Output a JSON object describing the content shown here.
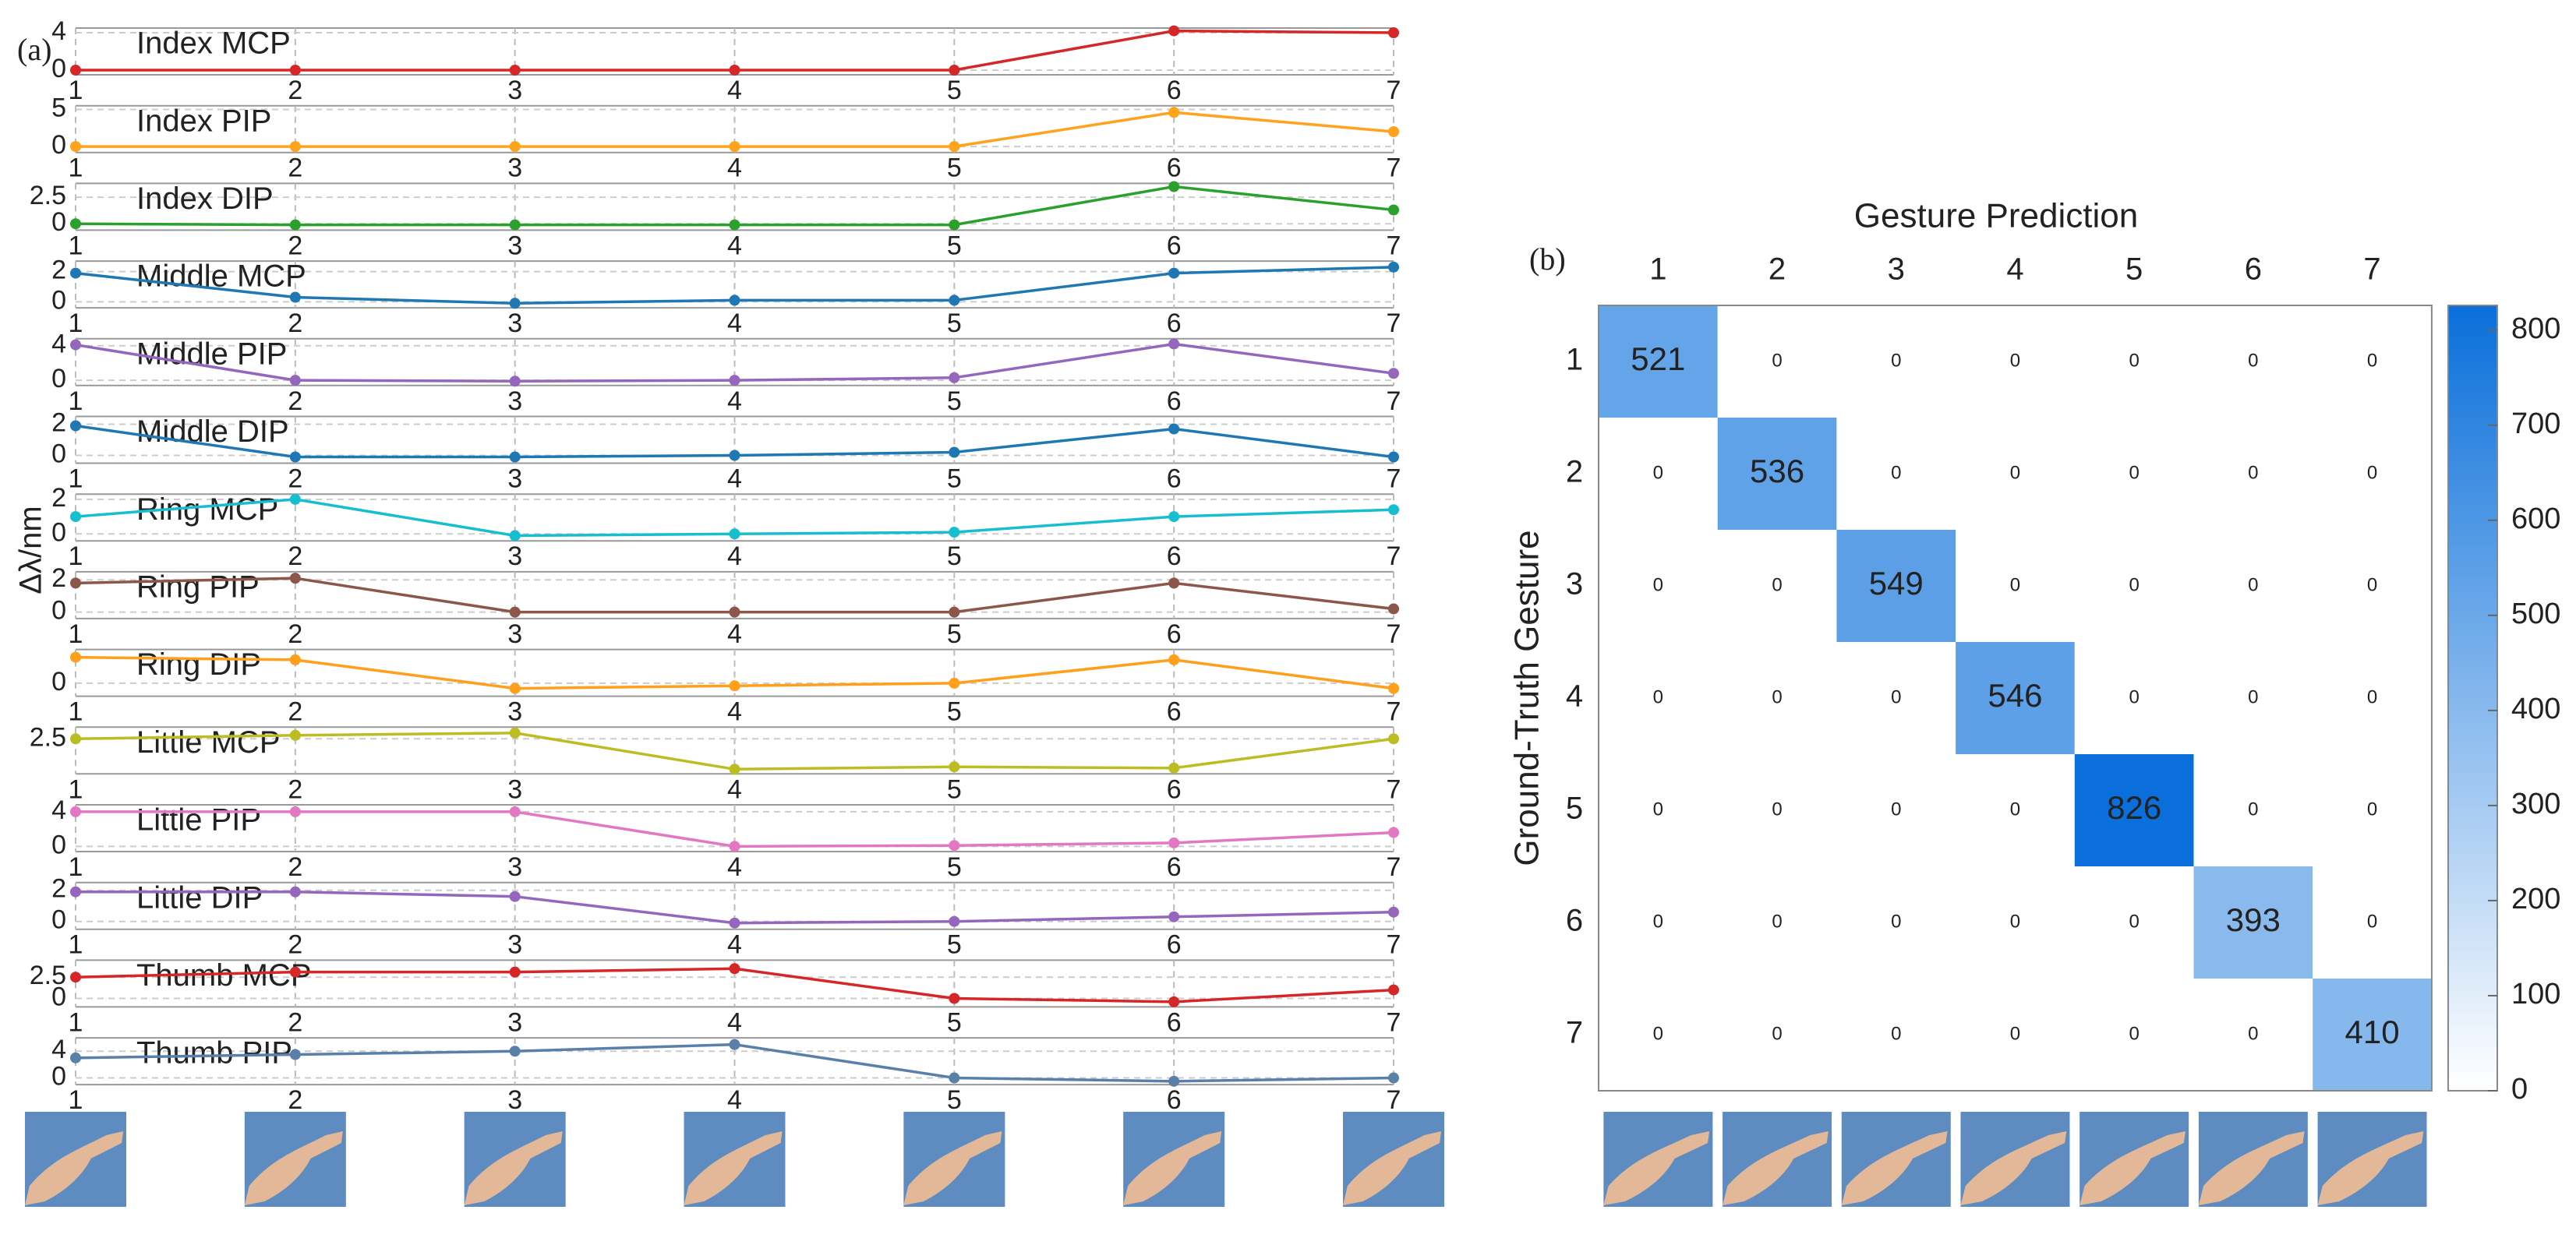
{
  "chart_data": [
    {
      "type": "line-panels",
      "panel_label": "(a)",
      "ylabel": "Δλ/nm",
      "x": [
        1,
        2,
        3,
        4,
        5,
        6,
        7
      ],
      "xticks": [
        1,
        2,
        3,
        4,
        5,
        6,
        7
      ],
      "xlim": [
        1,
        7
      ],
      "grid": true,
      "panels": [
        {
          "name": "Index MCP",
          "color": "#d62728",
          "values": [
            0,
            0,
            0,
            0,
            0,
            4.2,
            4.0
          ],
          "ylim": [
            -0.5,
            4.5
          ],
          "yticks": [
            0,
            4
          ]
        },
        {
          "name": "Index PIP",
          "color": "#ffa21c",
          "values": [
            0,
            0,
            0,
            0,
            0,
            4.6,
            2.0
          ],
          "ylim": [
            -0.8,
            5.5
          ],
          "yticks": [
            0,
            5
          ]
        },
        {
          "name": "Index DIP",
          "color": "#2ca02c",
          "values": [
            0,
            -0.1,
            -0.1,
            -0.1,
            -0.1,
            3.5,
            1.3
          ],
          "ylim": [
            -0.6,
            3.8
          ],
          "yticks": [
            0,
            2.5
          ]
        },
        {
          "name": "Middle MCP",
          "color": "#1f77b4",
          "values": [
            1.9,
            0.3,
            -0.1,
            0.1,
            0.1,
            1.9,
            2.3
          ],
          "ylim": [
            -0.4,
            2.7
          ],
          "yticks": [
            0,
            2
          ]
        },
        {
          "name": "Middle PIP",
          "color": "#9467bd",
          "values": [
            4.1,
            0,
            -0.1,
            0,
            0.3,
            4.2,
            0.8
          ],
          "ylim": [
            -0.6,
            4.8
          ],
          "yticks": [
            0,
            4
          ]
        },
        {
          "name": "Middle DIP",
          "color": "#1f77b4",
          "values": [
            1.9,
            -0.1,
            -0.1,
            0,
            0.2,
            1.7,
            -0.1
          ],
          "ylim": [
            -0.5,
            2.5
          ],
          "yticks": [
            0,
            2
          ]
        },
        {
          "name": "Ring MCP",
          "color": "#17becf",
          "values": [
            1.0,
            2.0,
            -0.1,
            0,
            0.1,
            1.0,
            1.4
          ],
          "ylim": [
            -0.4,
            2.3
          ],
          "yticks": [
            0,
            2
          ]
        },
        {
          "name": "Ring PIP",
          "color": "#8c564b",
          "values": [
            1.8,
            2.1,
            0,
            0,
            0,
            1.8,
            0.2
          ],
          "ylim": [
            -0.4,
            2.5
          ],
          "yticks": [
            0,
            2
          ]
        },
        {
          "name": "Ring DIP",
          "color": "#ff9f1a",
          "values": [
            1.0,
            0.9,
            -0.2,
            -0.1,
            0,
            0.9,
            -0.2
          ],
          "ylim": [
            -0.5,
            1.3
          ],
          "yticks": [
            0
          ]
        },
        {
          "name": "Little MCP",
          "color": "#bcbd22",
          "values": [
            2.5,
            2.8,
            3.0,
            -0.1,
            0.1,
            0,
            2.5
          ],
          "ylim": [
            -0.5,
            3.5
          ],
          "yticks": [
            2.5
          ]
        },
        {
          "name": "Little PIP",
          "color": "#e377c2",
          "values": [
            4.0,
            4.0,
            4.0,
            0,
            0.1,
            0.4,
            1.6
          ],
          "ylim": [
            -0.6,
            4.8
          ],
          "yticks": [
            0,
            4
          ]
        },
        {
          "name": "Little DIP",
          "color": "#9467bd",
          "values": [
            1.9,
            1.9,
            1.6,
            -0.1,
            0,
            0.3,
            0.6
          ],
          "ylim": [
            -0.5,
            2.5
          ],
          "yticks": [
            0,
            2
          ]
        },
        {
          "name": "Thumb MCP",
          "color": "#d62728",
          "values": [
            2.5,
            3.1,
            3.1,
            3.5,
            0,
            -0.4,
            1.0
          ],
          "ylim": [
            -1,
            4.5
          ],
          "yticks": [
            0,
            2.5
          ]
        },
        {
          "name": "Thumb PIP",
          "color": "#5a7fa8",
          "values": [
            3.0,
            3.5,
            4.0,
            5.0,
            0,
            -0.5,
            0
          ],
          "ylim": [
            -1,
            6
          ],
          "yticks": [
            0,
            4
          ]
        }
      ]
    },
    {
      "type": "heatmap",
      "panel_label": "(b)",
      "title": "Gesture Prediction",
      "ylabel": "Ground-Truth Gesture",
      "x_categories": [
        "1",
        "2",
        "3",
        "4",
        "5",
        "6",
        "7"
      ],
      "y_categories": [
        "1",
        "2",
        "3",
        "4",
        "5",
        "6",
        "7"
      ],
      "values": [
        [
          521,
          0,
          0,
          0,
          0,
          0,
          0
        ],
        [
          0,
          536,
          0,
          0,
          0,
          0,
          0
        ],
        [
          0,
          0,
          549,
          0,
          0,
          0,
          0
        ],
        [
          0,
          0,
          0,
          546,
          0,
          0,
          0
        ],
        [
          0,
          0,
          0,
          0,
          826,
          0,
          0
        ],
        [
          0,
          0,
          0,
          0,
          0,
          393,
          0
        ],
        [
          0,
          0,
          0,
          0,
          0,
          0,
          410
        ]
      ],
      "colormap": [
        "#ffffff",
        "#0a6fda"
      ],
      "clim": [
        0,
        826
      ],
      "cticks": [
        0,
        100,
        200,
        300,
        400,
        500,
        600,
        700,
        800
      ]
    }
  ]
}
